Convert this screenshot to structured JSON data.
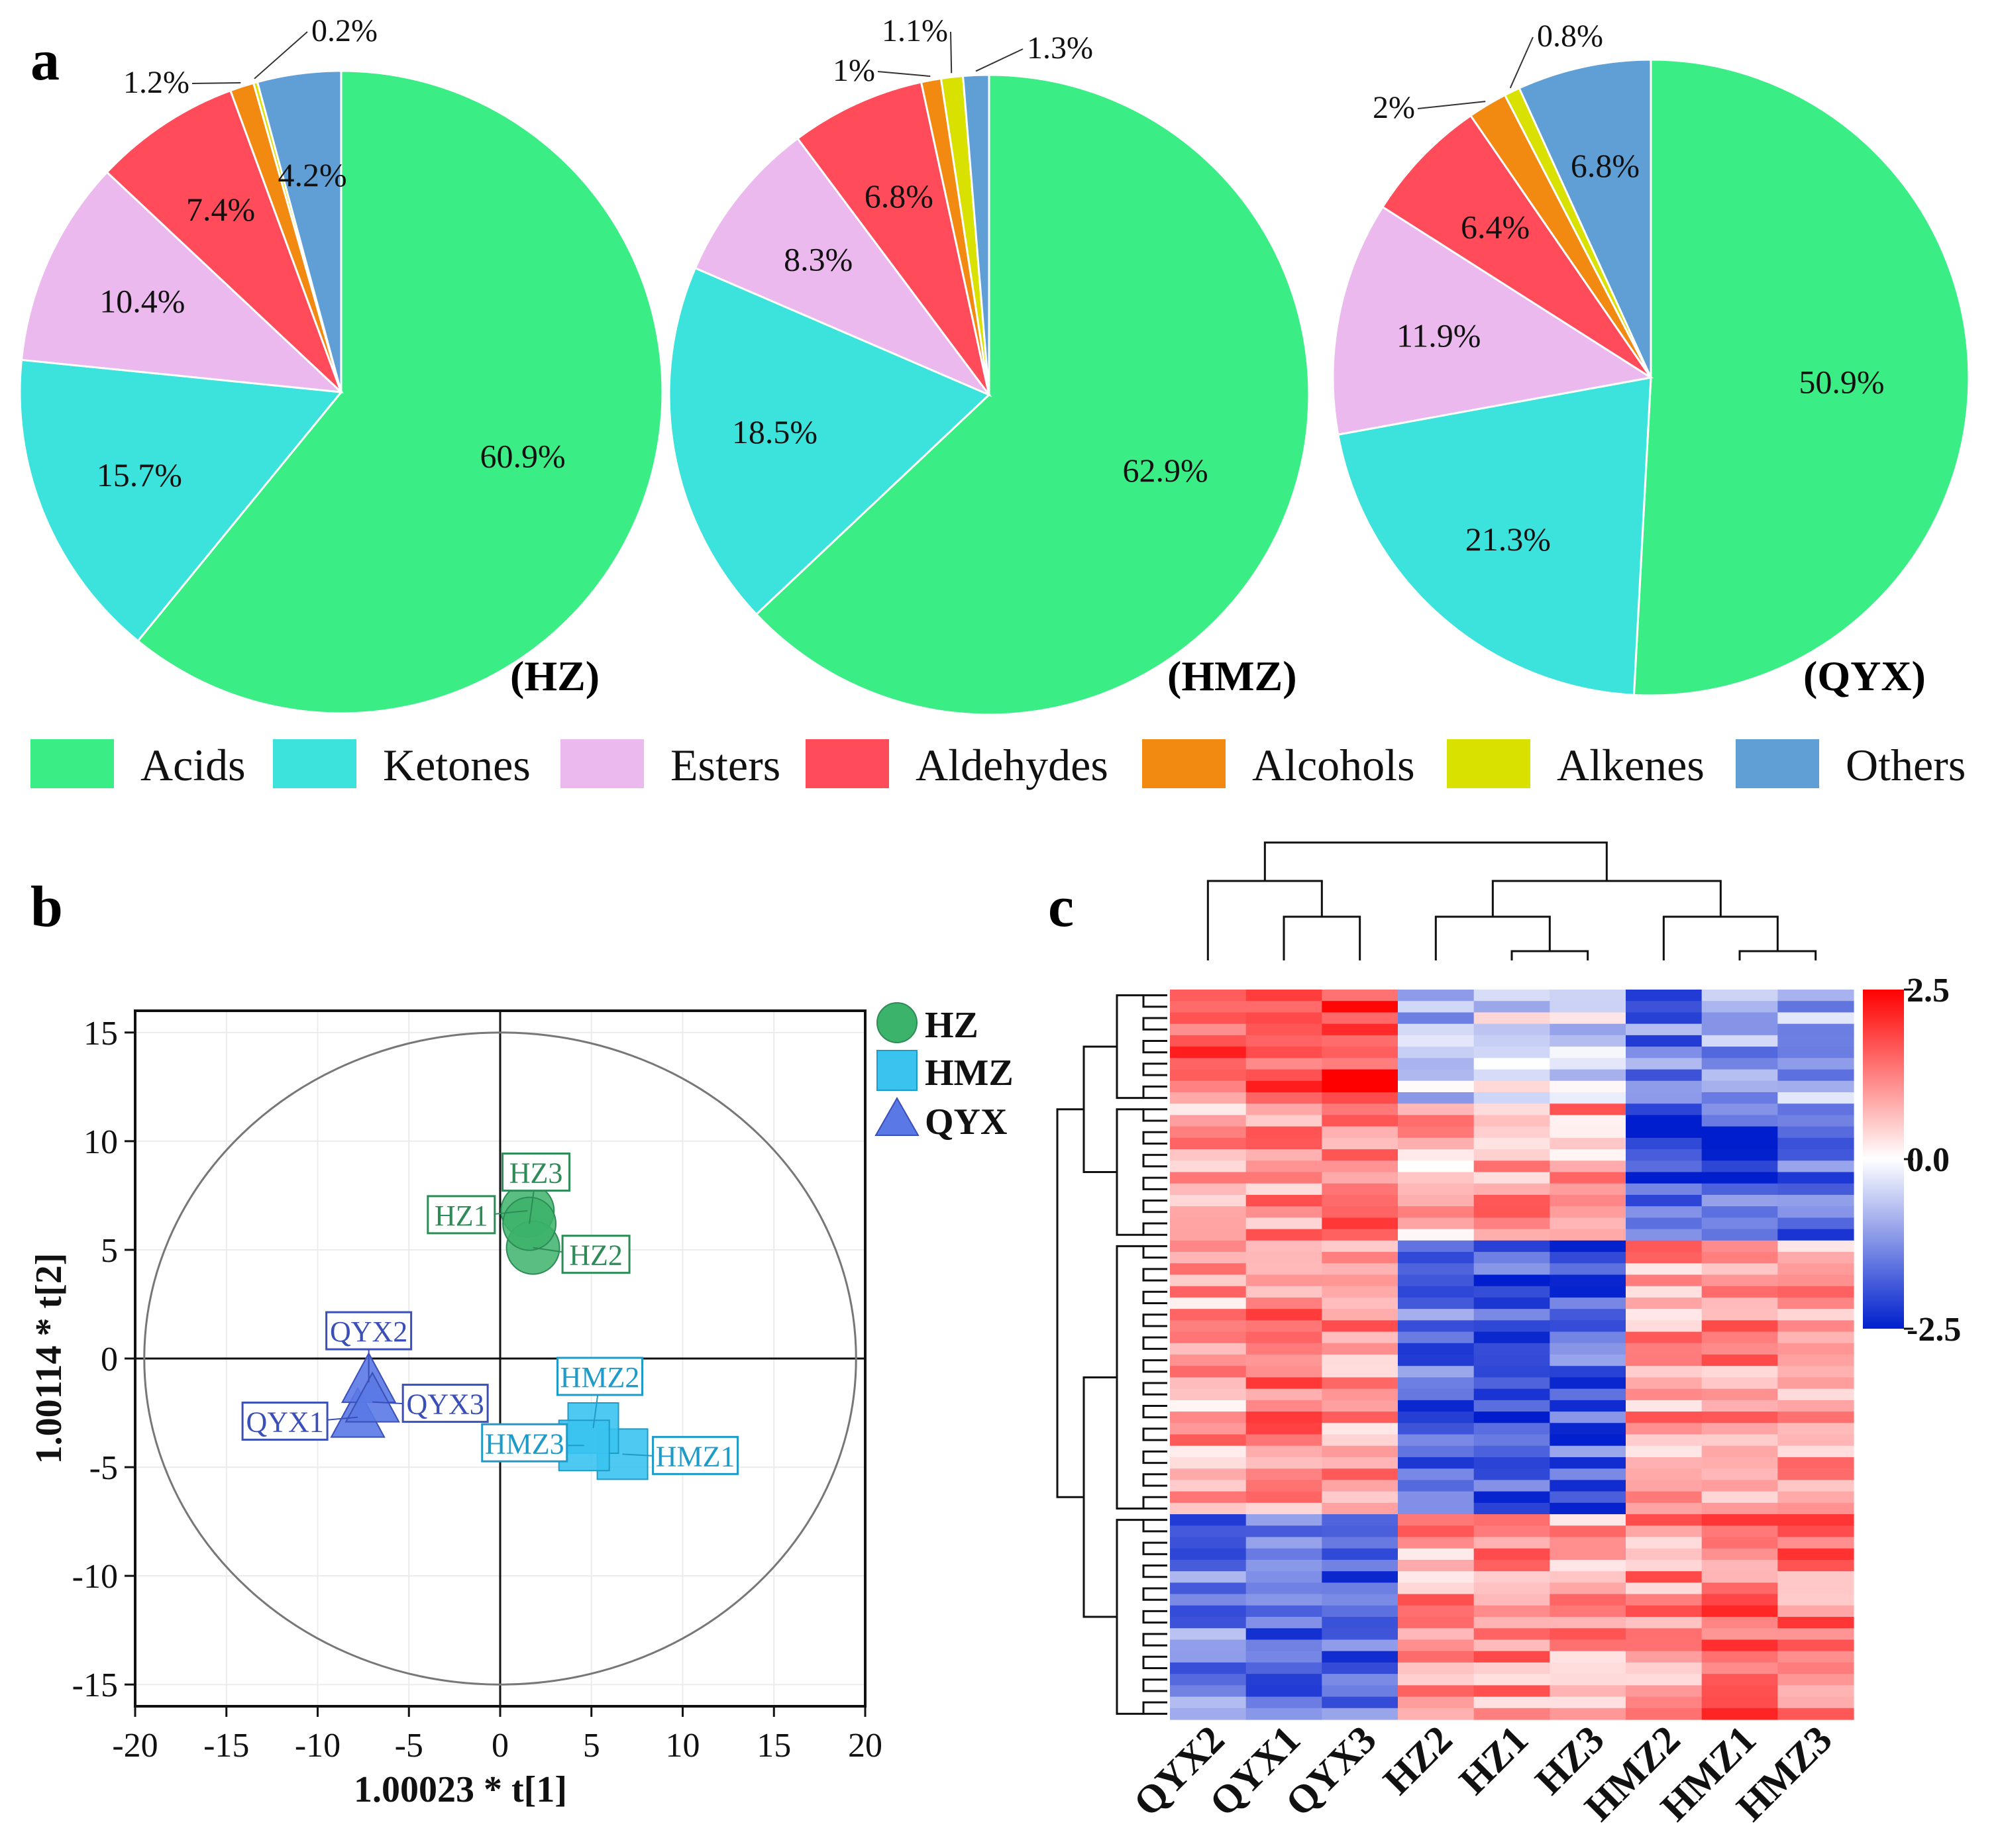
{
  "colors": {
    "Acids": "#3AEE85",
    "Ketones": "#3CE3DC",
    "Esters": "#EBB9EE",
    "Aldehydes": "#FF4B5A",
    "Alcohols": "#F28A12",
    "Alkenes": "#D9E100",
    "Others": "#5F9FD6",
    "HZ": "#3CB36A",
    "HMZ": "#3BC3F0",
    "QYX": "#5A79E6"
  },
  "panel_labels": {
    "a": "a",
    "b": "b",
    "c": "c"
  },
  "chart_data": [
    {
      "type": "pie",
      "name": "HZ",
      "title": "(HZ)",
      "categories": [
        "Acids",
        "Ketones",
        "Esters",
        "Aldehydes",
        "Alcohols",
        "Alkenes",
        "Others"
      ],
      "values": [
        60.9,
        15.7,
        10.4,
        7.4,
        1.2,
        0.2,
        4.2
      ],
      "labels": [
        "60.9%",
        "15.7%",
        "10.4%",
        "7.4%",
        "1.2%",
        "0.2%",
        "4.2%"
      ]
    },
    {
      "type": "pie",
      "name": "HMZ",
      "title": "(HMZ)",
      "categories": [
        "Acids",
        "Ketones",
        "Esters",
        "Aldehydes",
        "Alcohols",
        "Alkenes",
        "Others"
      ],
      "values": [
        62.9,
        18.5,
        8.3,
        6.8,
        1.0,
        1.1,
        1.3
      ],
      "labels": [
        "62.9%",
        "18.5%",
        "8.3%",
        "6.8%",
        "1%",
        "1.1%",
        "1.3%"
      ]
    },
    {
      "type": "pie",
      "name": "QYX",
      "title": "(QYX)",
      "categories": [
        "Acids",
        "Ketones",
        "Esters",
        "Aldehydes",
        "Alcohols",
        "Alkenes",
        "Others"
      ],
      "values": [
        50.9,
        21.3,
        11.9,
        6.4,
        2.0,
        0.8,
        6.8
      ],
      "labels": [
        "50.9%",
        "21.3%",
        "11.9%",
        "6.4%",
        "2%",
        "0.8%",
        "6.8%"
      ]
    },
    {
      "type": "scatter",
      "name": "PCA score plot",
      "xlabel": "1.00023 * t[1]",
      "ylabel": "1.00114 * t[2]",
      "xlim": [
        -20,
        20
      ],
      "ylim": [
        -16,
        16
      ],
      "xticks": [
        -20,
        -15,
        -10,
        -5,
        0,
        5,
        10,
        15,
        20
      ],
      "yticks": [
        -15,
        -10,
        -5,
        0,
        5,
        10,
        15
      ],
      "ellipse": {
        "rx": 19.5,
        "ry": 15
      },
      "legend": [
        "HZ",
        "HMZ",
        "QYX"
      ],
      "series": [
        {
          "name": "HZ",
          "marker": "circle",
          "points": [
            {
              "label": "HZ1",
              "x": 1.5,
              "y": 6.8
            },
            {
              "label": "HZ2",
              "x": 1.8,
              "y": 5.1
            },
            {
              "label": "HZ3",
              "x": 1.6,
              "y": 6.2
            }
          ]
        },
        {
          "name": "HMZ",
          "marker": "square",
          "points": [
            {
              "label": "HMZ1",
              "x": 6.7,
              "y": -4.4
            },
            {
              "label": "HMZ2",
              "x": 5.1,
              "y": -3.2
            },
            {
              "label": "HMZ3",
              "x": 4.6,
              "y": -4.0
            }
          ]
        },
        {
          "name": "QYX",
          "marker": "triangle",
          "points": [
            {
              "label": "QYX1",
              "x": -7.8,
              "y": -2.7
            },
            {
              "label": "QYX2",
              "x": -7.2,
              "y": -1.1
            },
            {
              "label": "QYX3",
              "x": -7.0,
              "y": -2.0
            }
          ]
        }
      ]
    },
    {
      "type": "heatmap",
      "name": "Hierarchical clustering heatmap",
      "columns": [
        "QYX2",
        "QYX1",
        "QYX3",
        "HZ2",
        "HZ1",
        "HZ3",
        "HMZ2",
        "HMZ1",
        "HMZ3"
      ],
      "colorbar": {
        "min": -2.5,
        "max": 2.5,
        "ticks": [
          "2.5",
          "0.0",
          "-2.5"
        ]
      },
      "row_clusters": [
        {
          "name": "cluster-1",
          "rows": 10,
          "profile": [
            1.6,
            1.8,
            2.0,
            -0.7,
            -0.3,
            -0.5,
            -1.5,
            -1.1,
            -1.0
          ]
        },
        {
          "name": "cluster-2",
          "rows": 12,
          "profile": [
            1.0,
            1.1,
            1.2,
            0.8,
            1.0,
            0.9,
            -2.0,
            -1.8,
            -1.7
          ]
        },
        {
          "name": "cluster-3",
          "rows": 24,
          "profile": [
            0.9,
            1.2,
            1.0,
            -1.6,
            -1.8,
            -1.7,
            0.9,
            1.1,
            1.0
          ]
        },
        {
          "name": "cluster-4",
          "rows": 18,
          "profile": [
            -1.4,
            -1.5,
            -1.6,
            1.0,
            1.0,
            0.9,
            1.0,
            1.5,
            1.3
          ]
        }
      ]
    }
  ]
}
